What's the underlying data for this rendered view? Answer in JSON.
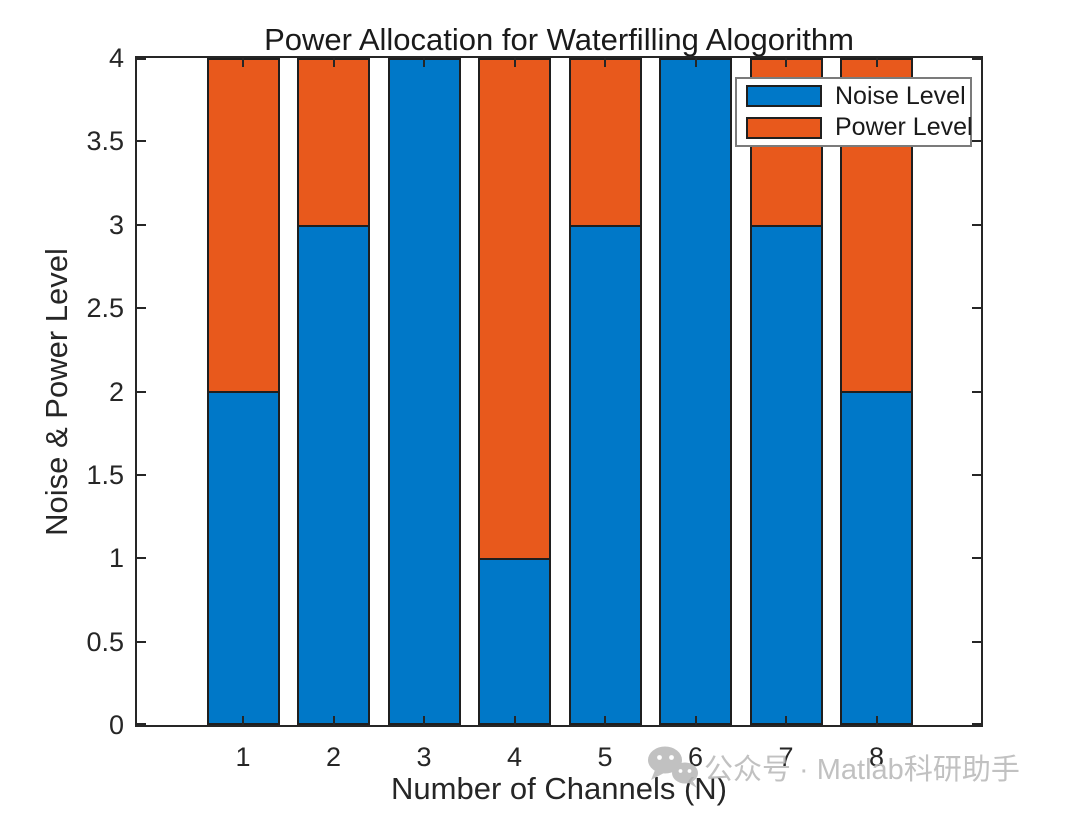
{
  "chart_data": {
    "type": "bar",
    "stacked": true,
    "title": "Power Allocation for Waterfilling Alogorithm",
    "xlabel": "Number of Channels (N)",
    "ylabel": "Noise & Power Level",
    "categories": [
      "1",
      "2",
      "3",
      "4",
      "5",
      "6",
      "7",
      "8"
    ],
    "series": [
      {
        "name": "Noise Level",
        "color": "#0078C8",
        "values": [
          2,
          3,
          4,
          1,
          3,
          4,
          3,
          2
        ]
      },
      {
        "name": "Power Level",
        "color": "#E8591C",
        "values": [
          2,
          1,
          0,
          3,
          1,
          0,
          1,
          2
        ]
      }
    ],
    "water_level": 4,
    "ylim": [
      0,
      4
    ],
    "yticks": [
      "0",
      "0.5",
      "1",
      "1.5",
      "2",
      "2.5",
      "3",
      "3.5",
      "4"
    ],
    "grid": false,
    "legend_position": "northeast",
    "bar_edge_color": "#1f1f1f",
    "axis_color": "#262626"
  },
  "watermark": {
    "icon": "wechat-icon",
    "text": "公众号 · Matlab科研助手",
    "color": "#bcbcbc"
  }
}
